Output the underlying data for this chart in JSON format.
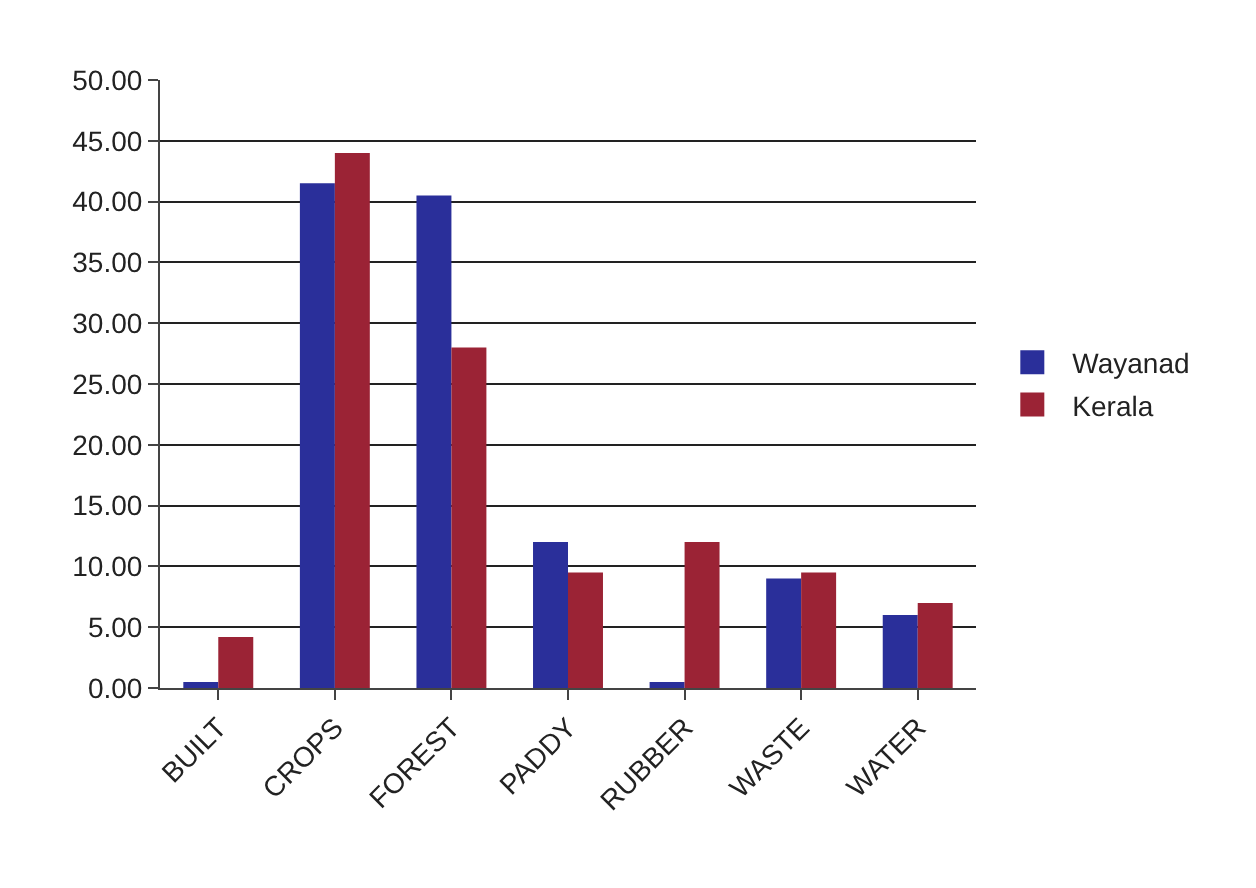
{
  "chart_data": {
    "type": "bar",
    "categories": [
      "BUILT",
      "CROPS",
      "FOREST",
      "PADDY",
      "RUBBER",
      "WASTE",
      "WATER"
    ],
    "series": [
      {
        "name": "Wayanad",
        "color": "#2a2f9a",
        "values": [
          0.5,
          41.5,
          40.5,
          12,
          0.5,
          9,
          6
        ]
      },
      {
        "name": "Kerala",
        "color": "#9b2335",
        "values": [
          4.2,
          44,
          28,
          9.5,
          12,
          9.5,
          7
        ]
      }
    ],
    "ylim": [
      0,
      50
    ],
    "yticks": [
      {
        "value": 0,
        "label": "0.00"
      },
      {
        "value": 5,
        "label": "5.00"
      },
      {
        "value": 10,
        "label": "10.00"
      },
      {
        "value": 15,
        "label": "15.00"
      },
      {
        "value": 20,
        "label": "20.00"
      },
      {
        "value": 25,
        "label": "25.00"
      },
      {
        "value": 30,
        "label": "30.00"
      },
      {
        "value": 35,
        "label": "35.00"
      },
      {
        "value": 40,
        "label": "40.00"
      },
      {
        "value": 45,
        "label": "45.00"
      },
      {
        "value": 50,
        "label": "50.00"
      }
    ],
    "grid": "y",
    "legend": "right"
  }
}
